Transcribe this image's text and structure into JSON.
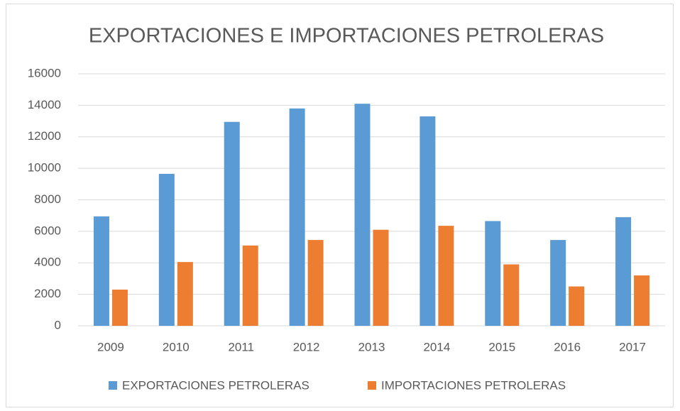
{
  "chart_data": {
    "type": "bar",
    "title": "EXPORTACIONES E IMPORTACIONES PETROLERAS",
    "categories": [
      "2009",
      "2010",
      "2011",
      "2012",
      "2013",
      "2014",
      "2015",
      "2016",
      "2017"
    ],
    "series": [
      {
        "name": "EXPORTACIONES PETROLERAS",
        "color": "#5b9bd5",
        "values": [
          6950,
          9650,
          12950,
          13800,
          14100,
          13300,
          6650,
          5450,
          6900
        ]
      },
      {
        "name": "IMPORTACIONES PETROLERAS",
        "color": "#ed7d31",
        "values": [
          2300,
          4050,
          5100,
          5450,
          6100,
          6350,
          3900,
          2500,
          3200
        ]
      }
    ],
    "ylim": [
      0,
      16000
    ],
    "yticks": [
      0,
      2000,
      4000,
      6000,
      8000,
      10000,
      12000,
      14000,
      16000
    ],
    "grid": true,
    "legend": "bottom"
  }
}
